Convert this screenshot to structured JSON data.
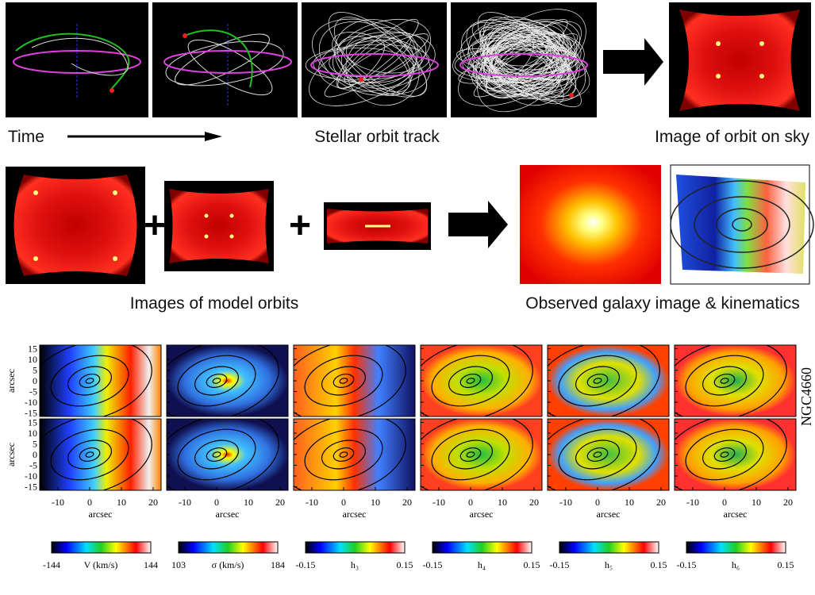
{
  "top_row": {
    "captions": [
      "Time",
      "Stellar orbit track",
      "Image of orbit on sky"
    ]
  },
  "middle_row": {
    "captions": [
      "Images of model orbits",
      "Observed galaxy image & kinematics"
    ]
  },
  "maps": {
    "galaxy": "NGC4660",
    "axis_label": "arcsec",
    "yticks": [
      15,
      10,
      5,
      0,
      -5,
      -10,
      -15
    ],
    "xticks": [
      -10,
      0,
      10,
      20
    ],
    "colorbars": [
      {
        "min": -144,
        "label": "V (km/s)",
        "max": 144
      },
      {
        "min": 103,
        "label": "σ (km/s)",
        "max": 184
      },
      {
        "min": -0.15,
        "label": "h₃",
        "max": 0.15
      },
      {
        "min": -0.15,
        "label": "h₄",
        "max": 0.15
      },
      {
        "min": -0.15,
        "label": "h₅",
        "max": 0.15
      },
      {
        "min": -0.15,
        "label": "h₆",
        "max": 0.15
      }
    ]
  }
}
